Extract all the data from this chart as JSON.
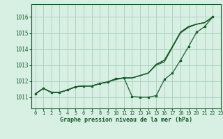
{
  "background_color": "#d8efe4",
  "grid_color": "#afd4be",
  "line_color": "#1a5c2a",
  "text_color": "#1a5c2a",
  "xlabel": "Graphe pression niveau de la mer (hPa)",
  "xlim": [
    -0.5,
    23
  ],
  "ylim": [
    1010.3,
    1016.8
  ],
  "yticks": [
    1011,
    1012,
    1013,
    1014,
    1015,
    1016
  ],
  "xticks": [
    0,
    1,
    2,
    3,
    4,
    5,
    6,
    7,
    8,
    9,
    10,
    11,
    12,
    13,
    14,
    15,
    16,
    17,
    18,
    19,
    20,
    21,
    22,
    23
  ],
  "series": [
    {
      "x": [
        0,
        1,
        2,
        3,
        4,
        5,
        6,
        7,
        8,
        9,
        10,
        11,
        12,
        13,
        14,
        15,
        16,
        17,
        18,
        19,
        20,
        21,
        22
      ],
      "y": [
        1011.2,
        1011.55,
        1011.3,
        1011.3,
        1011.45,
        1011.65,
        1011.7,
        1011.7,
        1011.85,
        1011.95,
        1012.1,
        1012.2,
        1012.2,
        1012.35,
        1012.5,
        1013.0,
        1013.2,
        1014.1,
        1015.0,
        1015.35,
        1015.55,
        1015.65,
        1016.0
      ],
      "marker": false
    },
    {
      "x": [
        0,
        1,
        2,
        3,
        4,
        5,
        6,
        7,
        8,
        9,
        10,
        11,
        12,
        13,
        14,
        15,
        16,
        17,
        18,
        19,
        20,
        21,
        22
      ],
      "y": [
        1011.2,
        1011.55,
        1011.3,
        1011.3,
        1011.45,
        1011.65,
        1011.7,
        1011.7,
        1011.85,
        1011.95,
        1012.15,
        1012.2,
        1012.2,
        1012.35,
        1012.5,
        1013.05,
        1013.3,
        1014.15,
        1015.05,
        1015.4,
        1015.55,
        1015.65,
        1016.0
      ],
      "marker": false
    },
    {
      "x": [
        0,
        1,
        2,
        3,
        4,
        5,
        6,
        7,
        8,
        9,
        10,
        11,
        12,
        13,
        14,
        15,
        16,
        17,
        18,
        19,
        20,
        21,
        22
      ],
      "y": [
        1011.2,
        1011.55,
        1011.3,
        1011.3,
        1011.45,
        1011.65,
        1011.7,
        1011.7,
        1011.85,
        1011.95,
        1012.15,
        1012.2,
        1012.2,
        1012.35,
        1012.5,
        1013.05,
        1013.3,
        1014.15,
        1015.05,
        1015.4,
        1015.55,
        1015.65,
        1016.0
      ],
      "marker": false
    },
    {
      "x": [
        0,
        1,
        2,
        3,
        4,
        5,
        6,
        7,
        8,
        9,
        10,
        11,
        12,
        13,
        14,
        15,
        16,
        17,
        18,
        19,
        20,
        21,
        22
      ],
      "y": [
        1011.2,
        1011.55,
        1011.3,
        1011.3,
        1011.45,
        1011.65,
        1011.7,
        1011.7,
        1011.85,
        1011.95,
        1012.15,
        1012.2,
        1011.05,
        1011.0,
        1011.0,
        1011.1,
        1012.1,
        1012.5,
        1013.3,
        1014.15,
        1015.05,
        1015.4,
        1016.0
      ],
      "marker": true
    }
  ]
}
